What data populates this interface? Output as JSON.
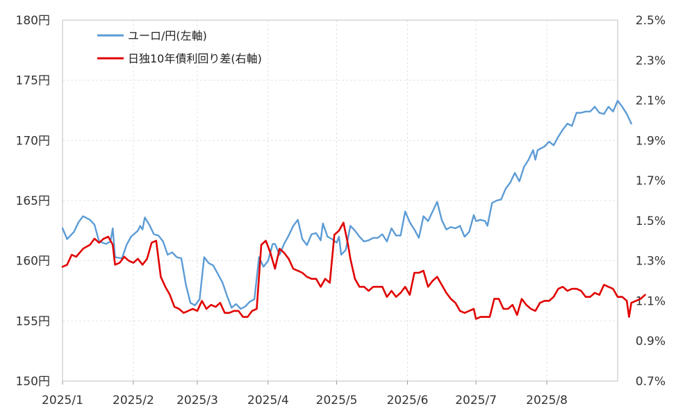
{
  "chart_data": {
    "type": "line",
    "title": "",
    "xlabel": "",
    "ylabel": "",
    "grid": true,
    "legend_position": "top-left",
    "x_axis": {
      "range": [
        "2025/1",
        "2025/9"
      ],
      "tick_labels": [
        "2025/1",
        "2025/2",
        "2025/3",
        "2025/4",
        "2025/5",
        "2025/6",
        "2025/7",
        "2025/8"
      ]
    },
    "y_left": {
      "range": [
        150,
        180
      ],
      "ticks": [
        150,
        155,
        160,
        165,
        170,
        175,
        180
      ],
      "tick_labels": [
        "150円",
        "155円",
        "160円",
        "165円",
        "170円",
        "175円",
        "180円"
      ]
    },
    "y_right": {
      "range": [
        0.7,
        2.5
      ],
      "ticks": [
        0.7,
        0.9,
        1.1,
        1.3,
        1.5,
        1.7,
        1.9,
        2.1,
        2.3,
        2.5
      ],
      "tick_labels": [
        "0.7%",
        "0.9%",
        "1.1%",
        "1.3%",
        "1.5%",
        "1.7%",
        "1.9%",
        "2.1%",
        "2.3%",
        "2.5%"
      ]
    },
    "series": [
      {
        "name": "ユーロ/円(左軸)",
        "axis": "left",
        "color": "#5b9bd5",
        "points": [
          [
            "2025-01-01",
            162.7
          ],
          [
            "2025-01-03",
            161.8
          ],
          [
            "2025-01-06",
            162.4
          ],
          [
            "2025-01-08",
            163.2
          ],
          [
            "2025-01-10",
            163.7
          ],
          [
            "2025-01-13",
            163.4
          ],
          [
            "2025-01-15",
            163.0
          ],
          [
            "2025-01-17",
            161.6
          ],
          [
            "2025-01-20",
            161.4
          ],
          [
            "2025-01-22",
            161.6
          ],
          [
            "2025-01-23",
            162.7
          ],
          [
            "2025-01-24",
            160.3
          ],
          [
            "2025-01-27",
            160.2
          ],
          [
            "2025-01-29",
            161.3
          ],
          [
            "2025-01-31",
            162.0
          ],
          [
            "2025-02-03",
            162.5
          ],
          [
            "2025-02-04",
            162.9
          ],
          [
            "2025-02-05",
            162.6
          ],
          [
            "2025-02-06",
            163.6
          ],
          [
            "2025-02-08",
            163.0
          ],
          [
            "2025-02-10",
            162.2
          ],
          [
            "2025-02-12",
            162.1
          ],
          [
            "2025-02-14",
            161.6
          ],
          [
            "2025-02-16",
            160.5
          ],
          [
            "2025-02-18",
            160.7
          ],
          [
            "2025-02-20",
            160.3
          ],
          [
            "2025-02-22",
            160.2
          ],
          [
            "2025-02-24",
            158.0
          ],
          [
            "2025-02-26",
            156.5
          ],
          [
            "2025-02-28",
            156.3
          ],
          [
            "2025-03-02",
            156.8
          ],
          [
            "2025-03-04",
            160.3
          ],
          [
            "2025-03-06",
            159.8
          ],
          [
            "2025-03-08",
            159.6
          ],
          [
            "2025-03-10",
            158.9
          ],
          [
            "2025-03-12",
            158.2
          ],
          [
            "2025-03-14",
            157.1
          ],
          [
            "2025-03-16",
            156.1
          ],
          [
            "2025-03-18",
            156.4
          ],
          [
            "2025-03-20",
            156.0
          ],
          [
            "2025-03-22",
            156.2
          ],
          [
            "2025-03-24",
            156.6
          ],
          [
            "2025-03-26",
            156.8
          ],
          [
            "2025-03-28",
            160.3
          ],
          [
            "2025-03-30",
            159.5
          ],
          [
            "2025-04-01",
            160.0
          ],
          [
            "2025-04-03",
            161.4
          ],
          [
            "2025-04-04",
            161.4
          ],
          [
            "2025-04-06",
            160.5
          ],
          [
            "2025-04-08",
            161.4
          ],
          [
            "2025-04-10",
            162.1
          ],
          [
            "2025-04-12",
            162.9
          ],
          [
            "2025-04-14",
            163.4
          ],
          [
            "2025-04-16",
            161.8
          ],
          [
            "2025-04-18",
            161.3
          ],
          [
            "2025-04-20",
            162.2
          ],
          [
            "2025-04-22",
            162.3
          ],
          [
            "2025-04-24",
            161.7
          ],
          [
            "2025-04-25",
            163.1
          ],
          [
            "2025-04-27",
            162.0
          ],
          [
            "2025-04-29",
            161.8
          ],
          [
            "2025-05-01",
            161.5
          ],
          [
            "2025-05-02",
            162.0
          ],
          [
            "2025-05-03",
            160.5
          ],
          [
            "2025-05-05",
            160.9
          ],
          [
            "2025-05-07",
            162.9
          ],
          [
            "2025-05-09",
            162.5
          ],
          [
            "2025-05-11",
            162.0
          ],
          [
            "2025-05-13",
            161.6
          ],
          [
            "2025-05-15",
            161.7
          ],
          [
            "2025-05-17",
            161.9
          ],
          [
            "2025-05-19",
            161.9
          ],
          [
            "2025-05-21",
            162.2
          ],
          [
            "2025-05-23",
            161.6
          ],
          [
            "2025-05-25",
            162.7
          ],
          [
            "2025-05-27",
            162.1
          ],
          [
            "2025-05-29",
            162.1
          ],
          [
            "2025-05-31",
            164.1
          ],
          [
            "2025-06-02",
            163.2
          ],
          [
            "2025-06-04",
            162.6
          ],
          [
            "2025-06-06",
            161.9
          ],
          [
            "2025-06-08",
            163.7
          ],
          [
            "2025-06-10",
            163.3
          ],
          [
            "2025-06-12",
            164.1
          ],
          [
            "2025-06-14",
            164.9
          ],
          [
            "2025-06-16",
            163.4
          ],
          [
            "2025-06-18",
            162.6
          ],
          [
            "2025-06-20",
            162.8
          ],
          [
            "2025-06-22",
            162.7
          ],
          [
            "2025-06-24",
            162.9
          ],
          [
            "2025-06-26",
            162.0
          ],
          [
            "2025-06-28",
            162.4
          ],
          [
            "2025-06-30",
            163.8
          ],
          [
            "2025-07-01",
            163.3
          ],
          [
            "2025-07-03",
            163.4
          ],
          [
            "2025-07-05",
            163.3
          ],
          [
            "2025-07-06",
            162.9
          ],
          [
            "2025-07-08",
            164.8
          ],
          [
            "2025-07-10",
            165.0
          ],
          [
            "2025-07-12",
            165.1
          ],
          [
            "2025-07-14",
            166.0
          ],
          [
            "2025-07-16",
            166.5
          ],
          [
            "2025-07-18",
            167.3
          ],
          [
            "2025-07-20",
            166.6
          ],
          [
            "2025-07-22",
            167.8
          ],
          [
            "2025-07-24",
            168.4
          ],
          [
            "2025-07-26",
            169.2
          ],
          [
            "2025-07-27",
            168.4
          ],
          [
            "2025-07-28",
            169.2
          ],
          [
            "2025-07-29",
            169.3
          ],
          [
            "2025-07-31",
            169.5
          ],
          [
            "2025-08-02",
            169.9
          ],
          [
            "2025-08-04",
            169.6
          ],
          [
            "2025-08-06",
            170.3
          ],
          [
            "2025-08-08",
            170.9
          ],
          [
            "2025-08-10",
            171.4
          ],
          [
            "2025-08-12",
            171.2
          ],
          [
            "2025-08-14",
            172.3
          ],
          [
            "2025-08-16",
            172.3
          ],
          [
            "2025-08-18",
            172.4
          ],
          [
            "2025-08-20",
            172.4
          ],
          [
            "2025-08-22",
            172.8
          ],
          [
            "2025-08-24",
            172.3
          ],
          [
            "2025-08-26",
            172.2
          ],
          [
            "2025-08-28",
            172.8
          ],
          [
            "2025-08-30",
            172.4
          ],
          [
            "2025-09-01",
            173.3
          ],
          [
            "2025-09-03",
            172.8
          ],
          [
            "2025-09-05",
            172.2
          ],
          [
            "2025-09-07",
            171.4
          ]
        ]
      },
      {
        "name": "日独10年債利回り差(右軸)",
        "axis": "right",
        "color": "#e00000",
        "points": [
          [
            "2025-01-01",
            1.27
          ],
          [
            "2025-01-03",
            1.28
          ],
          [
            "2025-01-05",
            1.33
          ],
          [
            "2025-01-07",
            1.32
          ],
          [
            "2025-01-10",
            1.36
          ],
          [
            "2025-01-13",
            1.38
          ],
          [
            "2025-01-15",
            1.41
          ],
          [
            "2025-01-17",
            1.39
          ],
          [
            "2025-01-19",
            1.41
          ],
          [
            "2025-01-21",
            1.42
          ],
          [
            "2025-01-23",
            1.38
          ],
          [
            "2025-01-24",
            1.28
          ],
          [
            "2025-01-26",
            1.29
          ],
          [
            "2025-01-28",
            1.32
          ],
          [
            "2025-01-30",
            1.3
          ],
          [
            "2025-02-01",
            1.29
          ],
          [
            "2025-02-03",
            1.31
          ],
          [
            "2025-02-05",
            1.28
          ],
          [
            "2025-02-07",
            1.31
          ],
          [
            "2025-02-09",
            1.39
          ],
          [
            "2025-02-11",
            1.4
          ],
          [
            "2025-02-13",
            1.22
          ],
          [
            "2025-02-15",
            1.17
          ],
          [
            "2025-02-17",
            1.13
          ],
          [
            "2025-02-19",
            1.07
          ],
          [
            "2025-02-21",
            1.06
          ],
          [
            "2025-02-23",
            1.04
          ],
          [
            "2025-02-25",
            1.05
          ],
          [
            "2025-02-27",
            1.06
          ],
          [
            "2025-03-01",
            1.05
          ],
          [
            "2025-03-03",
            1.1
          ],
          [
            "2025-03-05",
            1.06
          ],
          [
            "2025-03-07",
            1.08
          ],
          [
            "2025-03-09",
            1.07
          ],
          [
            "2025-03-11",
            1.09
          ],
          [
            "2025-03-13",
            1.04
          ],
          [
            "2025-03-15",
            1.04
          ],
          [
            "2025-03-17",
            1.05
          ],
          [
            "2025-03-19",
            1.05
          ],
          [
            "2025-03-21",
            1.02
          ],
          [
            "2025-03-23",
            1.02
          ],
          [
            "2025-03-25",
            1.05
          ],
          [
            "2025-03-27",
            1.06
          ],
          [
            "2025-03-29",
            1.38
          ],
          [
            "2025-03-31",
            1.4
          ],
          [
            "2025-04-02",
            1.34
          ],
          [
            "2025-04-04",
            1.26
          ],
          [
            "2025-04-06",
            1.36
          ],
          [
            "2025-04-08",
            1.34
          ],
          [
            "2025-04-10",
            1.31
          ],
          [
            "2025-04-12",
            1.26
          ],
          [
            "2025-04-14",
            1.25
          ],
          [
            "2025-04-16",
            1.24
          ],
          [
            "2025-04-18",
            1.22
          ],
          [
            "2025-04-20",
            1.21
          ],
          [
            "2025-04-22",
            1.21
          ],
          [
            "2025-04-24",
            1.17
          ],
          [
            "2025-04-26",
            1.21
          ],
          [
            "2025-04-28",
            1.19
          ],
          [
            "2025-04-30",
            1.43
          ],
          [
            "2025-05-02",
            1.45
          ],
          [
            "2025-05-04",
            1.49
          ],
          [
            "2025-05-06",
            1.38
          ],
          [
            "2025-05-07",
            1.31
          ],
          [
            "2025-05-09",
            1.21
          ],
          [
            "2025-05-11",
            1.17
          ],
          [
            "2025-05-13",
            1.17
          ],
          [
            "2025-05-15",
            1.15
          ],
          [
            "2025-05-17",
            1.17
          ],
          [
            "2025-05-19",
            1.17
          ],
          [
            "2025-05-21",
            1.17
          ],
          [
            "2025-05-23",
            1.12
          ],
          [
            "2025-05-25",
            1.15
          ],
          [
            "2025-05-27",
            1.12
          ],
          [
            "2025-05-29",
            1.14
          ],
          [
            "2025-05-31",
            1.17
          ],
          [
            "2025-06-02",
            1.13
          ],
          [
            "2025-06-04",
            1.24
          ],
          [
            "2025-06-06",
            1.24
          ],
          [
            "2025-06-08",
            1.25
          ],
          [
            "2025-06-10",
            1.17
          ],
          [
            "2025-06-12",
            1.2
          ],
          [
            "2025-06-14",
            1.22
          ],
          [
            "2025-06-16",
            1.18
          ],
          [
            "2025-06-18",
            1.14
          ],
          [
            "2025-06-20",
            1.11
          ],
          [
            "2025-06-22",
            1.09
          ],
          [
            "2025-06-24",
            1.05
          ],
          [
            "2025-06-26",
            1.04
          ],
          [
            "2025-06-28",
            1.05
          ],
          [
            "2025-06-30",
            1.06
          ],
          [
            "2025-07-01",
            1.01
          ],
          [
            "2025-07-03",
            1.02
          ],
          [
            "2025-07-05",
            1.02
          ],
          [
            "2025-07-07",
            1.02
          ],
          [
            "2025-07-09",
            1.11
          ],
          [
            "2025-07-11",
            1.11
          ],
          [
            "2025-07-13",
            1.06
          ],
          [
            "2025-07-15",
            1.06
          ],
          [
            "2025-07-17",
            1.08
          ],
          [
            "2025-07-19",
            1.03
          ],
          [
            "2025-07-21",
            1.11
          ],
          [
            "2025-07-23",
            1.08
          ],
          [
            "2025-07-25",
            1.06
          ],
          [
            "2025-07-27",
            1.05
          ],
          [
            "2025-07-29",
            1.09
          ],
          [
            "2025-07-31",
            1.1
          ],
          [
            "2025-08-02",
            1.1
          ],
          [
            "2025-08-04",
            1.12
          ],
          [
            "2025-08-06",
            1.16
          ],
          [
            "2025-08-08",
            1.17
          ],
          [
            "2025-08-10",
            1.15
          ],
          [
            "2025-08-12",
            1.16
          ],
          [
            "2025-08-14",
            1.16
          ],
          [
            "2025-08-16",
            1.15
          ],
          [
            "2025-08-18",
            1.12
          ],
          [
            "2025-08-20",
            1.12
          ],
          [
            "2025-08-22",
            1.14
          ],
          [
            "2025-08-24",
            1.13
          ],
          [
            "2025-08-26",
            1.18
          ],
          [
            "2025-08-28",
            1.17
          ],
          [
            "2025-08-30",
            1.16
          ],
          [
            "2025-09-01",
            1.12
          ],
          [
            "2025-09-03",
            1.12
          ],
          [
            "2025-09-05",
            1.1
          ],
          [
            "2025-09-06",
            1.02
          ],
          [
            "2025-09-07",
            1.09
          ],
          [
            "2025-09-09",
            1.1
          ],
          [
            "2025-09-11",
            1.11
          ],
          [
            "2025-09-13",
            1.13
          ]
        ]
      }
    ]
  }
}
